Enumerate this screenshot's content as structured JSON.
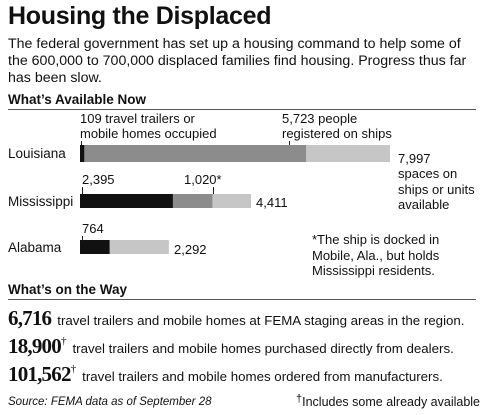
{
  "title": "Housing the Displaced",
  "intro": "The federal government has set up a housing command to help some of the 600,000 to 700,000 displaced families find housing. Progress thus far has been slow.",
  "chart_data": {
    "type": "bar",
    "title": "What’s Available Now",
    "categories": [
      "Louisiana",
      "Mississippi",
      "Alabama"
    ],
    "series": [
      {
        "values": [
          109,
          2395,
          764
        ]
      },
      {
        "values": [
          5723,
          1020,
          0
        ]
      },
      {
        "values": [
          7997,
          4411,
          2292
        ]
      }
    ],
    "annotations": {
      "louisiana_occupied": "109 travel trailers or mobile homes occupied",
      "louisiana_ships": "5,723 people registered on ships",
      "louisiana_total": "7,997",
      "louisiana_total_note": "spaces on ships or units available",
      "mississippi_occupied": "2,395",
      "mississippi_ships": "1,020*",
      "mississippi_total": "4,411",
      "alabama_occupied": "764",
      "alabama_total": "2,292",
      "ship_note": "*The ship is docked in Mobile, Ala., but holds Mississippi residents."
    },
    "colors": {
      "occupied": "#111111",
      "ships": "#8c8c8c",
      "available": "#c6c6c6"
    }
  },
  "on_the_way": {
    "heading": "What’s on the Way",
    "rows": [
      {
        "number": "6,716",
        "dagger": "",
        "text": "travel trailers and mobile homes at FEMA staging areas in the region."
      },
      {
        "number": "18,900",
        "dagger": "†",
        "text": "travel trailers and mobile homes purchased directly from dealers."
      },
      {
        "number": "101,562",
        "dagger": "†",
        "text": "travel trailers and mobile homes ordered from manufacturers."
      }
    ]
  },
  "source": "Source: FEMA data as of September 28",
  "footnote": {
    "dagger": "†",
    "text": "Includes some already available"
  }
}
